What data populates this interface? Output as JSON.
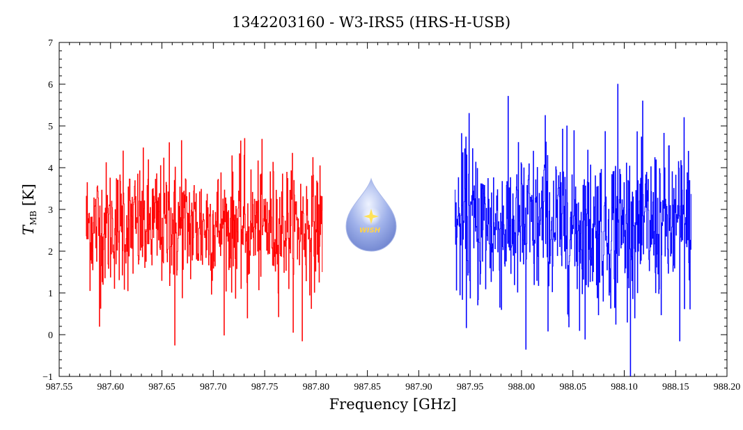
{
  "chart_data": {
    "type": "line",
    "title": "1342203160 - W3-IRS5 (HRS-H-USB)",
    "xlabel": "Frequency [GHz]",
    "ylabel_main": "T",
    "ylabel_sub": "MB",
    "ylabel_unit": "[K]",
    "xlim": [
      987.55,
      988.2
    ],
    "ylim": [
      -1,
      7
    ],
    "xticks": [
      987.55,
      987.6,
      987.65,
      987.7,
      987.75,
      987.8,
      987.85,
      987.9,
      987.95,
      988.0,
      988.05,
      988.1,
      988.15,
      988.2
    ],
    "xtick_labels": [
      "987.55",
      "987.60",
      "987.65",
      "987.70",
      "987.75",
      "987.80",
      "987.85",
      "987.90",
      "987.95",
      "988.00",
      "988.05",
      "988.10",
      "988.15",
      "988.20"
    ],
    "yticks": [
      -1,
      0,
      1,
      2,
      3,
      4,
      5,
      6,
      7
    ],
    "ytick_labels": [
      "−1",
      "0",
      "1",
      "2",
      "3",
      "4",
      "5",
      "6",
      "7"
    ],
    "series": [
      {
        "color": "#ff0000",
        "x_range": [
          987.576,
          987.806
        ],
        "mean": 2.6,
        "spread": 0.75,
        "n_points": 600,
        "extremes": [
          {
            "x": 987.589,
            "y": 0.2
          },
          {
            "x": 987.612,
            "y": 4.4
          },
          {
            "x": 987.657,
            "y": 4.6
          },
          {
            "x": 987.6625,
            "y": -0.25
          },
          {
            "x": 987.669,
            "y": 4.65
          },
          {
            "x": 987.7305,
            "y": 4.7
          },
          {
            "x": 987.733,
            "y": 0.4
          },
          {
            "x": 987.7865,
            "y": -0.15
          }
        ]
      },
      {
        "color": "#0000ff",
        "x_range": [
          987.935,
          988.165
        ],
        "mean": 2.6,
        "spread": 0.95,
        "n_points": 600,
        "extremes": [
          {
            "x": 987.949,
            "y": 5.3
          },
          {
            "x": 988.004,
            "y": -0.35
          },
          {
            "x": 988.023,
            "y": 5.25
          },
          {
            "x": 988.044,
            "y": 5.0
          },
          {
            "x": 988.0565,
            "y": 0.1
          },
          {
            "x": 988.0935,
            "y": 6.0
          },
          {
            "x": 988.0915,
            "y": 0.25
          },
          {
            "x": 988.154,
            "y": -0.15
          },
          {
            "x": 988.158,
            "y": 5.2
          }
        ]
      }
    ]
  },
  "logo": {
    "text": "WISH",
    "colors": {
      "drop_top": "#dfe8ff",
      "drop_bottom": "#7a8fd6",
      "star": "#ffe25a"
    }
  }
}
